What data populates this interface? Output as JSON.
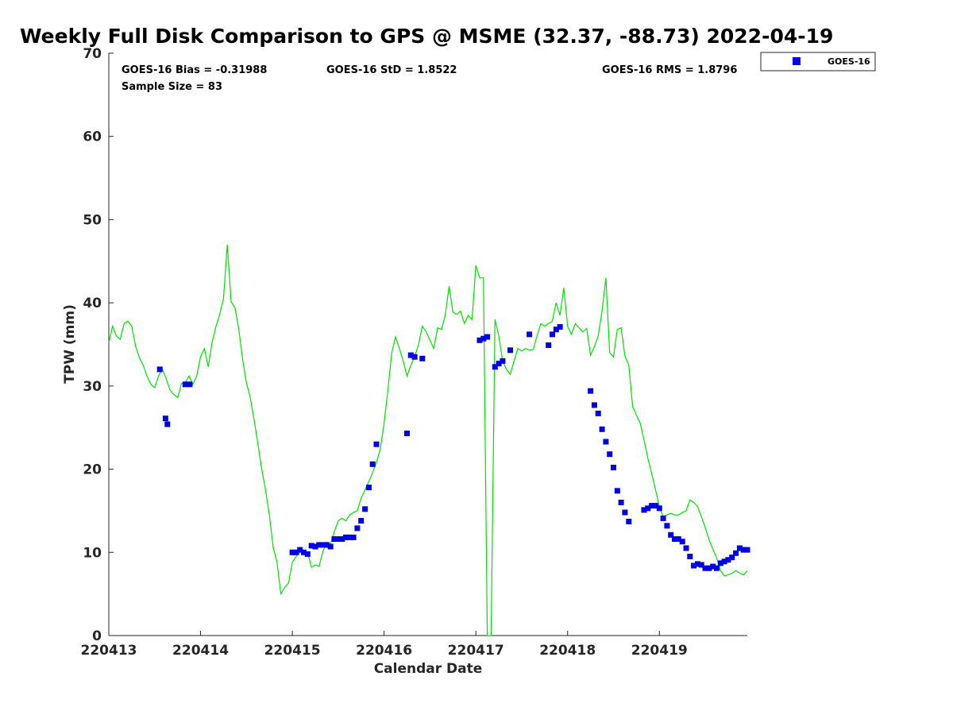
{
  "chart_data": {
    "type": "scatter",
    "title": "Weekly Full Disk Comparison to GPS @ MSME (32.37, -88.73) 2022-04-19",
    "xlabel": "Calendar Date",
    "ylabel": "TPW (mm)",
    "xlim": [
      "2022-04-13T00:00",
      "2022-04-19T23:00"
    ],
    "ylim": [
      0,
      70
    ],
    "x_tick_labels": [
      "220413",
      "220414",
      "220415",
      "220416",
      "220417",
      "220418",
      "220419"
    ],
    "x_tick_values": [
      "2022-04-13",
      "2022-04-14",
      "2022-04-15",
      "2022-04-16",
      "2022-04-17",
      "2022-04-18",
      "2022-04-19"
    ],
    "y_ticks": [
      0,
      10,
      20,
      30,
      40,
      50,
      60,
      70
    ],
    "grid": false,
    "stats": {
      "bias": "GOES-16 Bias = -0.31988",
      "std": "GOES-16 StD = 1.8522",
      "rms": "GOES-16 RMS = 1.8796",
      "sample": "Sample Size = 83"
    },
    "legend": {
      "placement": "top-right",
      "entries": [
        {
          "label": "GOES-16",
          "color": "#0000e0",
          "marker": "square"
        }
      ]
    },
    "series": [
      {
        "name": "GOES-16",
        "style": "markers",
        "color": "#0000e0",
        "x": [
          "2022-04-13T13:20",
          "2022-04-13T14:50",
          "2022-04-13T15:20",
          "2022-04-13T20:00",
          "2022-04-13T21:10",
          "2022-04-15T00:00",
          "2022-04-15T01:00",
          "2022-04-15T02:00",
          "2022-04-15T03:00",
          "2022-04-15T04:00",
          "2022-04-15T05:00",
          "2022-04-15T06:00",
          "2022-04-15T07:00",
          "2022-04-15T08:00",
          "2022-04-15T09:00",
          "2022-04-15T10:00",
          "2022-04-15T11:00",
          "2022-04-15T12:00",
          "2022-04-15T13:00",
          "2022-04-15T14:00",
          "2022-04-15T15:00",
          "2022-04-15T16:00",
          "2022-04-15T17:00",
          "2022-04-15T18:00",
          "2022-04-15T19:00",
          "2022-04-15T20:00",
          "2022-04-15T21:00",
          "2022-04-15T22:00",
          "2022-04-16T06:00",
          "2022-04-16T07:00",
          "2022-04-16T08:00",
          "2022-04-16T10:00",
          "2022-04-17T01:00",
          "2022-04-17T02:00",
          "2022-04-17T03:00",
          "2022-04-17T05:00",
          "2022-04-17T06:00",
          "2022-04-17T07:00",
          "2022-04-17T09:00",
          "2022-04-17T14:00",
          "2022-04-17T19:00",
          "2022-04-17T20:00",
          "2022-04-17T21:00",
          "2022-04-17T22:00",
          "2022-04-18T06:00",
          "2022-04-18T07:00",
          "2022-04-18T08:00",
          "2022-04-18T09:00",
          "2022-04-18T10:00",
          "2022-04-18T11:00",
          "2022-04-18T12:00",
          "2022-04-18T13:00",
          "2022-04-18T14:00",
          "2022-04-18T15:00",
          "2022-04-18T16:00",
          "2022-04-18T20:00",
          "2022-04-18T21:00",
          "2022-04-18T22:00",
          "2022-04-18T23:00",
          "2022-04-19T00:00",
          "2022-04-19T01:00",
          "2022-04-19T02:00",
          "2022-04-19T03:00",
          "2022-04-19T04:00",
          "2022-04-19T05:00",
          "2022-04-19T06:00",
          "2022-04-19T07:00",
          "2022-04-19T08:00",
          "2022-04-19T09:00",
          "2022-04-19T10:00",
          "2022-04-19T11:00",
          "2022-04-19T12:00",
          "2022-04-19T13:00",
          "2022-04-19T14:00",
          "2022-04-19T15:00",
          "2022-04-19T16:00",
          "2022-04-19T17:00",
          "2022-04-19T18:00",
          "2022-04-19T19:00",
          "2022-04-19T20:00",
          "2022-04-19T21:00",
          "2022-04-19T22:00",
          "2022-04-19T23:00"
        ],
        "y": [
          32.0,
          26.1,
          25.4,
          30.2,
          30.2,
          10.0,
          10.0,
          10.3,
          10.0,
          9.8,
          10.8,
          10.7,
          10.9,
          10.9,
          10.9,
          10.7,
          11.6,
          11.6,
          11.6,
          11.8,
          11.8,
          11.8,
          12.9,
          13.8,
          15.2,
          17.8,
          20.6,
          23.0,
          24.3,
          33.7,
          33.5,
          33.3,
          35.5,
          35.7,
          35.9,
          32.3,
          32.7,
          33.0,
          34.3,
          36.2,
          34.9,
          36.2,
          36.8,
          37.1,
          29.4,
          27.7,
          26.7,
          24.8,
          23.3,
          21.8,
          20.2,
          17.4,
          16.0,
          14.8,
          13.7,
          15.1,
          15.3,
          15.6,
          15.6,
          15.3,
          14.1,
          13.2,
          12.1,
          11.6,
          11.6,
          11.3,
          10.5,
          9.5,
          8.4,
          8.6,
          8.5,
          8.1,
          8.1,
          8.3,
          8.1,
          8.7,
          8.9,
          9.1,
          9.4,
          9.9,
          10.5,
          10.3,
          10.3
        ]
      },
      {
        "name": "GPS",
        "style": "line",
        "color": "#00e000",
        "x": [
          "2022-04-13T00:00",
          "2022-04-13T01:00",
          "2022-04-13T02:00",
          "2022-04-13T03:00",
          "2022-04-13T04:00",
          "2022-04-13T05:00",
          "2022-04-13T06:00",
          "2022-04-13T07:00",
          "2022-04-13T08:00",
          "2022-04-13T09:00",
          "2022-04-13T10:00",
          "2022-04-13T11:00",
          "2022-04-13T12:00",
          "2022-04-13T13:00",
          "2022-04-13T14:00",
          "2022-04-13T15:00",
          "2022-04-13T16:00",
          "2022-04-13T17:00",
          "2022-04-13T18:00",
          "2022-04-13T19:00",
          "2022-04-13T20:00",
          "2022-04-13T21:00",
          "2022-04-13T22:00",
          "2022-04-13T23:00",
          "2022-04-14T00:00",
          "2022-04-14T01:00",
          "2022-04-14T02:00",
          "2022-04-14T03:00",
          "2022-04-14T04:00",
          "2022-04-14T05:00",
          "2022-04-14T06:00",
          "2022-04-14T07:00",
          "2022-04-14T08:00",
          "2022-04-14T09:00",
          "2022-04-14T10:00",
          "2022-04-14T11:00",
          "2022-04-14T12:00",
          "2022-04-14T13:00",
          "2022-04-14T14:00",
          "2022-04-14T15:00",
          "2022-04-14T16:00",
          "2022-04-14T17:00",
          "2022-04-14T18:00",
          "2022-04-14T19:00",
          "2022-04-14T20:00",
          "2022-04-14T21:00",
          "2022-04-14T22:00",
          "2022-04-14T23:00",
          "2022-04-15T00:00",
          "2022-04-15T01:00",
          "2022-04-15T02:00",
          "2022-04-15T03:00",
          "2022-04-15T04:00",
          "2022-04-15T05:00",
          "2022-04-15T06:00",
          "2022-04-15T07:00",
          "2022-04-15T08:00",
          "2022-04-15T09:00",
          "2022-04-15T10:00",
          "2022-04-15T11:00",
          "2022-04-15T12:00",
          "2022-04-15T13:00",
          "2022-04-15T14:00",
          "2022-04-15T15:00",
          "2022-04-15T16:00",
          "2022-04-15T17:00",
          "2022-04-15T18:00",
          "2022-04-15T19:00",
          "2022-04-15T20:00",
          "2022-04-15T21:00",
          "2022-04-15T22:00",
          "2022-04-15T23:00",
          "2022-04-16T00:00",
          "2022-04-16T01:00",
          "2022-04-16T02:00",
          "2022-04-16T03:00",
          "2022-04-16T04:00",
          "2022-04-16T05:00",
          "2022-04-16T06:00",
          "2022-04-16T07:00",
          "2022-04-16T08:00",
          "2022-04-16T09:00",
          "2022-04-16T10:00",
          "2022-04-16T11:00",
          "2022-04-16T12:00",
          "2022-04-16T13:00",
          "2022-04-16T14:00",
          "2022-04-16T15:00",
          "2022-04-16T16:00",
          "2022-04-16T17:00",
          "2022-04-16T18:00",
          "2022-04-16T19:00",
          "2022-04-16T20:00",
          "2022-04-16T21:00",
          "2022-04-16T22:00",
          "2022-04-16T23:00",
          "2022-04-17T00:00",
          "2022-04-17T01:00",
          "2022-04-17T02:00",
          "2022-04-17T03:00",
          "2022-04-17T04:00",
          "2022-04-17T05:00",
          "2022-04-17T06:00",
          "2022-04-17T07:00",
          "2022-04-17T08:00",
          "2022-04-17T09:00",
          "2022-04-17T10:00",
          "2022-04-17T11:00",
          "2022-04-17T12:00",
          "2022-04-17T13:00",
          "2022-04-17T14:00",
          "2022-04-17T15:00",
          "2022-04-17T16:00",
          "2022-04-17T17:00",
          "2022-04-17T18:00",
          "2022-04-17T19:00",
          "2022-04-17T20:00",
          "2022-04-17T21:00",
          "2022-04-17T22:00",
          "2022-04-17T23:00",
          "2022-04-18T00:00",
          "2022-04-18T01:00",
          "2022-04-18T02:00",
          "2022-04-18T03:00",
          "2022-04-18T04:00",
          "2022-04-18T05:00",
          "2022-04-18T06:00",
          "2022-04-18T07:00",
          "2022-04-18T08:00",
          "2022-04-18T09:00",
          "2022-04-18T10:00",
          "2022-04-18T11:00",
          "2022-04-18T12:00",
          "2022-04-18T13:00",
          "2022-04-18T14:00",
          "2022-04-18T15:00",
          "2022-04-18T16:00",
          "2022-04-18T17:00",
          "2022-04-18T18:00",
          "2022-04-18T19:00",
          "2022-04-18T20:00",
          "2022-04-18T21:00",
          "2022-04-18T22:00",
          "2022-04-18T23:00",
          "2022-04-19T00:00",
          "2022-04-19T01:00",
          "2022-04-19T02:00",
          "2022-04-19T03:00",
          "2022-04-19T04:00",
          "2022-04-19T05:00",
          "2022-04-19T06:00",
          "2022-04-19T07:00",
          "2022-04-19T08:00",
          "2022-04-19T09:00",
          "2022-04-19T10:00",
          "2022-04-19T11:00",
          "2022-04-19T12:00",
          "2022-04-19T13:00",
          "2022-04-19T14:00",
          "2022-04-19T15:00",
          "2022-04-19T16:00",
          "2022-04-19T17:00",
          "2022-04-19T18:00",
          "2022-04-19T19:00",
          "2022-04-19T20:00",
          "2022-04-19T21:00",
          "2022-04-19T22:00",
          "2022-04-19T23:00"
        ],
        "y": [
          35.2,
          37.2,
          36.0,
          35.6,
          37.5,
          37.8,
          37.2,
          34.8,
          33.4,
          32.5,
          31.2,
          30.2,
          29.8,
          31.2,
          32.0,
          30.9,
          29.5,
          29.0,
          28.6,
          30.3,
          30.4,
          31.2,
          30.2,
          31.2,
          33.5,
          34.5,
          32.3,
          35.2,
          37.1,
          38.6,
          40.5,
          47.0,
          40.1,
          39.4,
          36.8,
          33.2,
          30.4,
          28.6,
          26.0,
          23.0,
          20.0,
          17.5,
          14.5,
          10.6,
          8.8,
          5.0,
          5.8,
          6.3,
          8.8,
          9.5,
          10.0,
          10.2,
          10.0,
          8.2,
          8.5,
          8.3,
          10.1,
          11.2,
          11.0,
          12.5,
          13.8,
          14.1,
          13.8,
          14.5,
          14.8,
          15.0,
          16.5,
          17.5,
          18.5,
          19.6,
          20.8,
          22.4,
          25.5,
          29.5,
          34.0,
          35.9,
          34.5,
          33.0,
          31.2,
          32.5,
          33.5,
          35.0,
          37.2,
          36.5,
          35.5,
          34.5,
          37.0,
          36.8,
          38.5,
          42.0,
          38.9,
          38.6,
          39.0,
          37.5,
          38.5,
          38.0,
          44.5,
          43.0,
          43.0,
          0.0,
          0.0,
          38.0,
          36.0,
          33.0,
          32.0,
          31.4,
          33.0,
          34.5,
          34.2,
          34.5,
          34.3,
          34.4,
          36.0,
          37.5,
          37.2,
          37.5,
          37.8,
          40.0,
          38.5,
          41.8,
          37.2,
          36.2,
          37.5,
          37.0,
          36.5,
          36.9,
          33.7,
          34.7,
          36.0,
          39.0,
          43.0,
          34.0,
          33.5,
          36.8,
          37.0,
          33.6,
          32.5,
          27.5,
          26.5,
          25.5,
          23.5,
          21.3,
          19.5,
          17.5,
          15.5,
          14.3,
          14.5,
          14.7,
          14.5,
          14.5,
          14.8,
          15.0,
          16.3,
          16.0,
          15.5,
          14.3,
          13.0,
          11.5,
          10.4,
          9.3,
          7.8,
          7.2,
          7.3,
          7.5,
          7.8,
          7.5,
          7.3,
          7.8
        ]
      }
    ]
  }
}
